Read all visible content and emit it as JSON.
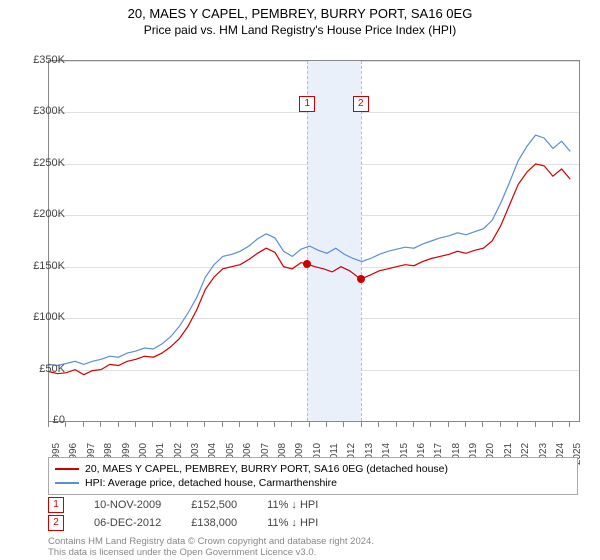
{
  "title": "20, MAES Y CAPEL, PEMBREY, BURRY PORT, SA16 0EG",
  "subtitle": "Price paid vs. HM Land Registry's House Price Index (HPI)",
  "chart": {
    "type": "line",
    "background_color": "#ffffff",
    "grid_color": "#e0e0e0",
    "border_color": "#888888",
    "x_start_year": 1995,
    "x_end_year": 2025.5,
    "ylim": [
      0,
      350000
    ],
    "ytick_step": 50000,
    "ytick_labels": [
      "£0",
      "£50K",
      "£100K",
      "£150K",
      "£200K",
      "£250K",
      "£300K",
      "£350K"
    ],
    "xlabels": [
      "1995",
      "1996",
      "1997",
      "1998",
      "1999",
      "2000",
      "2001",
      "2002",
      "2003",
      "2004",
      "2005",
      "2006",
      "2007",
      "2008",
      "2009",
      "2010",
      "2011",
      "2012",
      "2013",
      "2014",
      "2015",
      "2016",
      "2017",
      "2018",
      "2019",
      "2020",
      "2021",
      "2022",
      "2023",
      "2024",
      "2025"
    ],
    "band": {
      "from": 2009.86,
      "to": 2012.94,
      "fill": "#eaf0fa",
      "dash_color": "#bbbbbb"
    },
    "band_markers": [
      {
        "label": "1",
        "year": 2009.86
      },
      {
        "label": "2",
        "year": 2012.94
      }
    ],
    "series": [
      {
        "name": "price_paid",
        "color": "#cc0000",
        "width": 1.2,
        "label": "20, MAES Y CAPEL, PEMBREY, BURRY PORT, SA16 0EG (detached house)",
        "points": [
          [
            1995.0,
            48000
          ],
          [
            1995.5,
            46000
          ],
          [
            1996.0,
            47000
          ],
          [
            1996.5,
            50000
          ],
          [
            1997.0,
            45000
          ],
          [
            1997.5,
            49000
          ],
          [
            1998.0,
            50000
          ],
          [
            1998.5,
            55000
          ],
          [
            1999.0,
            54000
          ],
          [
            1999.5,
            58000
          ],
          [
            2000.0,
            60000
          ],
          [
            2000.5,
            63000
          ],
          [
            2001.0,
            62000
          ],
          [
            2001.5,
            66000
          ],
          [
            2002.0,
            72000
          ],
          [
            2002.5,
            80000
          ],
          [
            2003.0,
            92000
          ],
          [
            2003.5,
            108000
          ],
          [
            2004.0,
            128000
          ],
          [
            2004.5,
            140000
          ],
          [
            2005.0,
            148000
          ],
          [
            2005.5,
            150000
          ],
          [
            2006.0,
            152000
          ],
          [
            2006.5,
            157000
          ],
          [
            2007.0,
            163000
          ],
          [
            2007.5,
            168000
          ],
          [
            2008.0,
            164000
          ],
          [
            2008.5,
            150000
          ],
          [
            2009.0,
            148000
          ],
          [
            2009.5,
            154000
          ],
          [
            2009.86,
            152500
          ],
          [
            2010.3,
            150000
          ],
          [
            2010.8,
            148000
          ],
          [
            2011.3,
            145000
          ],
          [
            2011.8,
            150000
          ],
          [
            2012.3,
            146000
          ],
          [
            2012.94,
            138000
          ],
          [
            2013.5,
            142000
          ],
          [
            2014.0,
            146000
          ],
          [
            2014.5,
            148000
          ],
          [
            2015.0,
            150000
          ],
          [
            2015.5,
            152000
          ],
          [
            2016.0,
            151000
          ],
          [
            2016.5,
            155000
          ],
          [
            2017.0,
            158000
          ],
          [
            2017.5,
            160000
          ],
          [
            2018.0,
            162000
          ],
          [
            2018.5,
            165000
          ],
          [
            2019.0,
            163000
          ],
          [
            2019.5,
            166000
          ],
          [
            2020.0,
            168000
          ],
          [
            2020.5,
            175000
          ],
          [
            2021.0,
            190000
          ],
          [
            2021.5,
            210000
          ],
          [
            2022.0,
            230000
          ],
          [
            2022.5,
            242000
          ],
          [
            2023.0,
            250000
          ],
          [
            2023.5,
            248000
          ],
          [
            2024.0,
            238000
          ],
          [
            2024.5,
            245000
          ],
          [
            2025.0,
            235000
          ]
        ]
      },
      {
        "name": "hpi",
        "color": "#5a8fd6",
        "width": 1.2,
        "label": "HPI: Average price, detached house, Carmarthenshire",
        "points": [
          [
            1995.0,
            55000
          ],
          [
            1995.5,
            54000
          ],
          [
            1996.0,
            56000
          ],
          [
            1996.5,
            58000
          ],
          [
            1997.0,
            55000
          ],
          [
            1997.5,
            58000
          ],
          [
            1998.0,
            60000
          ],
          [
            1998.5,
            63000
          ],
          [
            1999.0,
            62000
          ],
          [
            1999.5,
            66000
          ],
          [
            2000.0,
            68000
          ],
          [
            2000.5,
            71000
          ],
          [
            2001.0,
            70000
          ],
          [
            2001.5,
            75000
          ],
          [
            2002.0,
            82000
          ],
          [
            2002.5,
            92000
          ],
          [
            2003.0,
            105000
          ],
          [
            2003.5,
            120000
          ],
          [
            2004.0,
            140000
          ],
          [
            2004.5,
            152000
          ],
          [
            2005.0,
            160000
          ],
          [
            2005.5,
            162000
          ],
          [
            2006.0,
            165000
          ],
          [
            2006.5,
            170000
          ],
          [
            2007.0,
            177000
          ],
          [
            2007.5,
            182000
          ],
          [
            2008.0,
            178000
          ],
          [
            2008.5,
            165000
          ],
          [
            2009.0,
            160000
          ],
          [
            2009.5,
            167000
          ],
          [
            2010.0,
            170000
          ],
          [
            2010.5,
            166000
          ],
          [
            2011.0,
            163000
          ],
          [
            2011.5,
            168000
          ],
          [
            2012.0,
            162000
          ],
          [
            2012.5,
            158000
          ],
          [
            2013.0,
            155000
          ],
          [
            2013.5,
            158000
          ],
          [
            2014.0,
            162000
          ],
          [
            2014.5,
            165000
          ],
          [
            2015.0,
            167000
          ],
          [
            2015.5,
            169000
          ],
          [
            2016.0,
            168000
          ],
          [
            2016.5,
            172000
          ],
          [
            2017.0,
            175000
          ],
          [
            2017.5,
            178000
          ],
          [
            2018.0,
            180000
          ],
          [
            2018.5,
            183000
          ],
          [
            2019.0,
            181000
          ],
          [
            2019.5,
            184000
          ],
          [
            2020.0,
            187000
          ],
          [
            2020.5,
            195000
          ],
          [
            2021.0,
            212000
          ],
          [
            2021.5,
            232000
          ],
          [
            2022.0,
            253000
          ],
          [
            2022.5,
            267000
          ],
          [
            2023.0,
            278000
          ],
          [
            2023.5,
            275000
          ],
          [
            2024.0,
            265000
          ],
          [
            2024.5,
            272000
          ],
          [
            2025.0,
            262000
          ]
        ]
      }
    ],
    "sale_markers": [
      {
        "year": 2009.86,
        "price": 152500,
        "color": "#cc0000"
      },
      {
        "year": 2012.94,
        "price": 138000,
        "color": "#cc0000"
      }
    ]
  },
  "sales": [
    {
      "idx": "1",
      "date": "10-NOV-2009",
      "price": "£152,500",
      "delta": "11% ↓ HPI"
    },
    {
      "idx": "2",
      "date": "06-DEC-2012",
      "price": "£138,000",
      "delta": "11% ↓ HPI"
    }
  ],
  "copyright_line1": "Contains HM Land Registry data © Crown copyright and database right 2024.",
  "copyright_line2": "This data is licensed under the Open Government Licence v3.0."
}
